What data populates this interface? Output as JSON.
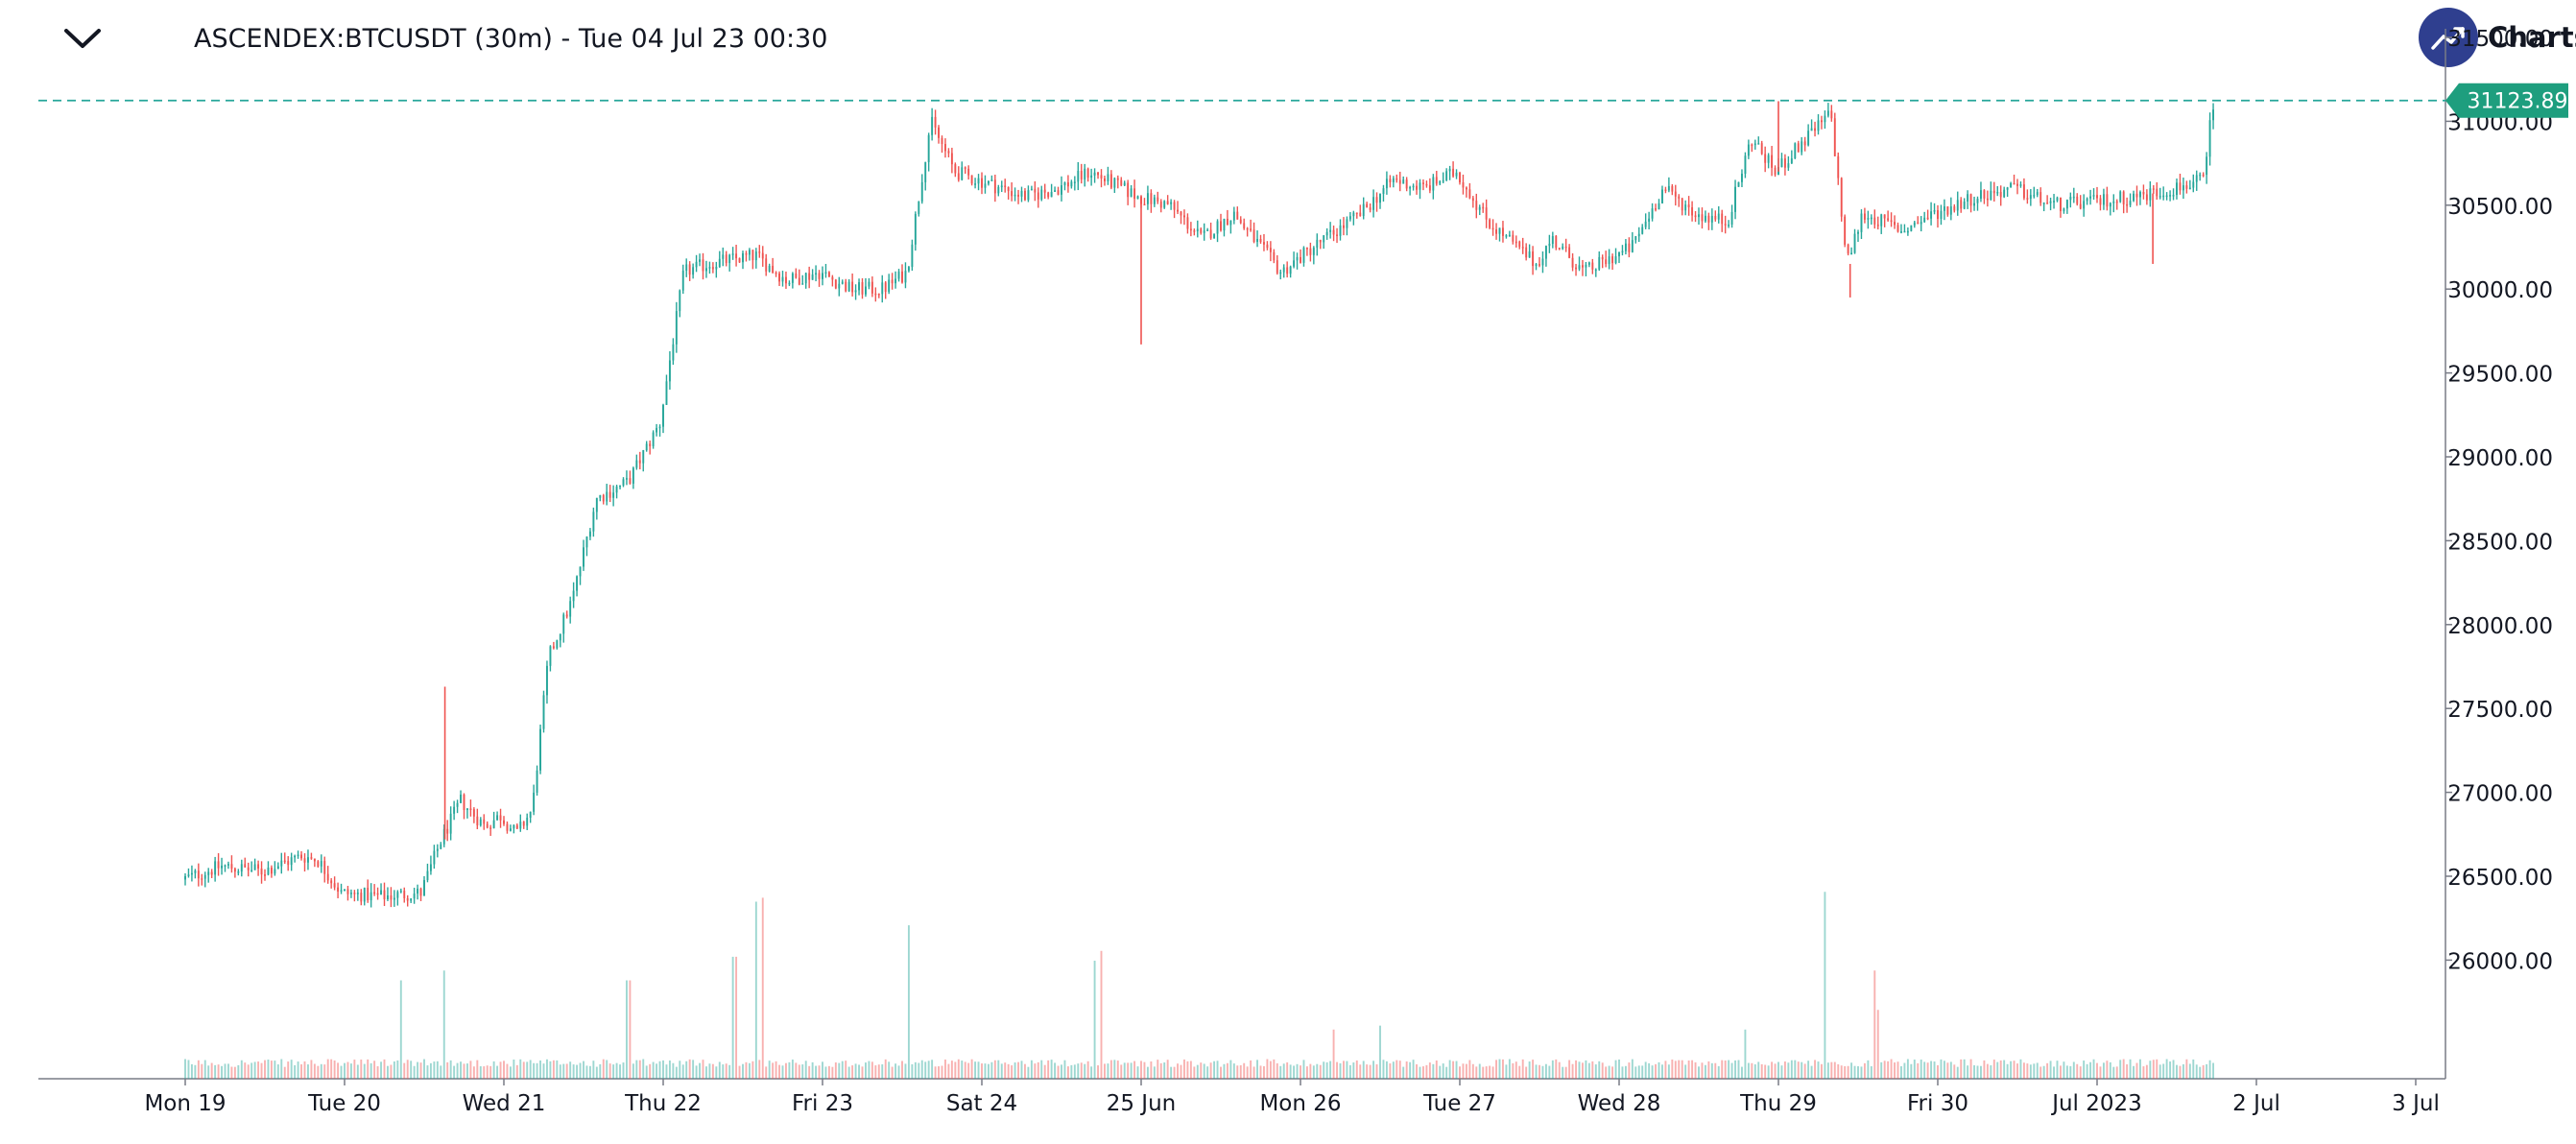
{
  "header": {
    "symbol_title": "ASCENDEX:BTCUSDT (30m) - Tue 04 Jul 23 00:30",
    "brand_text": "Charts p"
  },
  "icons": {
    "collapse": "chevron-down-icon",
    "brand": "trend-up-icon"
  },
  "colors": {
    "up": "#26a69a",
    "down": "#ef5350",
    "price_line": "#26a69a",
    "price_label_bg": "#1e9e7e",
    "axis": "#131722",
    "brand_circle": "#2f3f8f"
  },
  "price_line": {
    "value": 31123.89,
    "label": "31123.89"
  },
  "chart_data": {
    "type": "candlestick",
    "title": "ASCENDEX:BTCUSDT (30m)",
    "interval": "30m",
    "y_ticks": [
      "31500.00",
      "31000.00",
      "30500.00",
      "30000.00",
      "29500.00",
      "29000.00",
      "28500.00",
      "28000.00",
      "27500.00",
      "27000.00",
      "26500.00",
      "26000.00"
    ],
    "ylim": [
      25720,
      31700
    ],
    "x_ticks": [
      "Mon 19",
      "Tue 20",
      "Wed 21",
      "Thu 22",
      "Fri 23",
      "Sat 24",
      "25 Jun",
      "Mon 26",
      "Tue 27",
      "Wed 28",
      "Thu 29",
      "Fri 30",
      "Jul 2023",
      "2 Jul",
      "3 Jul"
    ],
    "day_start": 0.5,
    "price_anchors": [
      [
        0.0,
        26480
      ],
      [
        0.25,
        26560
      ],
      [
        0.5,
        26530
      ],
      [
        0.75,
        26620
      ],
      [
        0.85,
        26600
      ],
      [
        1.0,
        26400
      ],
      [
        1.25,
        26380
      ],
      [
        1.5,
        26400
      ],
      [
        1.62,
        26700
      ],
      [
        1.75,
        26950
      ],
      [
        1.9,
        26800
      ],
      [
        2.0,
        26860
      ],
      [
        2.1,
        26750
      ],
      [
        2.2,
        26900
      ],
      [
        2.3,
        27800
      ],
      [
        2.45,
        28150
      ],
      [
        2.6,
        28750
      ],
      [
        2.8,
        28850
      ],
      [
        3.0,
        29200
      ],
      [
        3.15,
        30100
      ],
      [
        3.3,
        30150
      ],
      [
        3.6,
        30200
      ],
      [
        3.8,
        30050
      ],
      [
        4.0,
        30100
      ],
      [
        4.2,
        30000
      ],
      [
        4.4,
        30000
      ],
      [
        4.55,
        30100
      ],
      [
        4.7,
        31000
      ],
      [
        4.85,
        30700
      ],
      [
        5.0,
        30650
      ],
      [
        5.3,
        30550
      ],
      [
        5.5,
        30600
      ],
      [
        5.7,
        30700
      ],
      [
        6.0,
        30550
      ],
      [
        6.2,
        30500
      ],
      [
        6.4,
        30300
      ],
      [
        6.6,
        30450
      ],
      [
        6.9,
        30100
      ],
      [
        7.1,
        30250
      ],
      [
        7.4,
        30450
      ],
      [
        7.6,
        30650
      ],
      [
        7.8,
        30600
      ],
      [
        8.0,
        30700
      ],
      [
        8.2,
        30400
      ],
      [
        8.5,
        30150
      ],
      [
        8.6,
        30300
      ],
      [
        8.8,
        30100
      ],
      [
        9.1,
        30250
      ],
      [
        9.3,
        30600
      ],
      [
        9.5,
        30450
      ],
      [
        9.7,
        30400
      ],
      [
        9.85,
        30900
      ],
      [
        10.0,
        30700
      ],
      [
        10.15,
        30850
      ],
      [
        10.35,
        31050
      ],
      [
        10.45,
        30150
      ],
      [
        10.55,
        30450
      ],
      [
        10.8,
        30350
      ],
      [
        11.0,
        30450
      ],
      [
        11.25,
        30550
      ],
      [
        11.5,
        30600
      ],
      [
        11.75,
        30500
      ],
      [
        12.0,
        30520
      ],
      [
        12.25,
        30550
      ],
      [
        12.5,
        30600
      ],
      [
        12.7,
        30650
      ],
      [
        12.72,
        30950
      ],
      [
        12.75,
        31050
      ]
    ],
    "volume_spikes": [
      [
        1.35,
        0.5
      ],
      [
        1.63,
        0.55
      ],
      [
        2.78,
        0.5
      ],
      [
        3.45,
        0.62
      ],
      [
        3.58,
        0.9
      ],
      [
        3.62,
        0.92
      ],
      [
        4.55,
        0.78
      ],
      [
        5.7,
        0.6
      ],
      [
        5.75,
        0.65
      ],
      [
        7.2,
        0.25
      ],
      [
        7.5,
        0.27
      ],
      [
        9.8,
        0.25
      ],
      [
        10.3,
        0.95
      ],
      [
        10.6,
        0.55
      ],
      [
        10.63,
        0.35
      ]
    ],
    "series": [
      {
        "name": "BTCUSDT",
        "kind": "ohlc_30m"
      },
      {
        "name": "Volume",
        "kind": "volume"
      }
    ]
  }
}
